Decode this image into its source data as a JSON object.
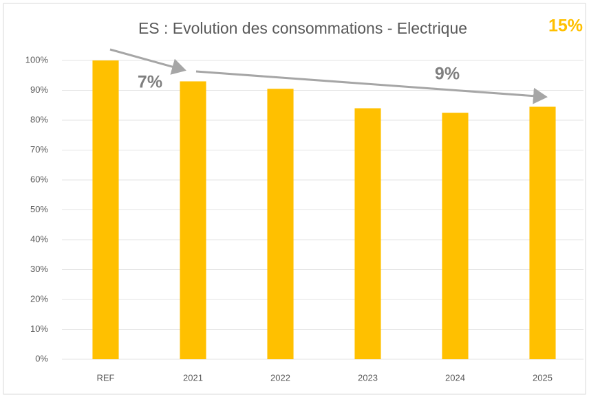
{
  "chart_data": {
    "type": "bar",
    "title": "ES : Evolution des consommations - Electrique",
    "annotations": [
      "7%",
      "9%",
      "15%"
    ],
    "categories": [
      "REF",
      "2021",
      "2022",
      "2023",
      "2024",
      "2025"
    ],
    "values": [
      100,
      93,
      90.5,
      84,
      82.5,
      84.5
    ],
    "color": "#ffc000",
    "ylim": [
      0,
      100
    ],
    "yticks": [
      {
        "value": 0,
        "label": "0%"
      },
      {
        "value": 10,
        "label": "10%"
      },
      {
        "value": 20,
        "label": "20%"
      },
      {
        "value": 30,
        "label": "30%"
      },
      {
        "value": 40,
        "label": "40%"
      },
      {
        "value": 50,
        "label": "50%"
      },
      {
        "value": 60,
        "label": "60%"
      },
      {
        "value": 70,
        "label": "70%"
      },
      {
        "value": 80,
        "label": "80%"
      },
      {
        "value": 90,
        "label": "90%"
      },
      {
        "value": 100,
        "label": "100%"
      }
    ],
    "grid": true
  }
}
